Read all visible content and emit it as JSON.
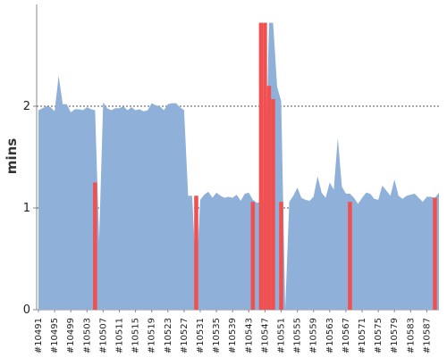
{
  "chart_data": {
    "type": "area",
    "ylabel": "mins",
    "ylim": [
      0,
      3
    ],
    "yticks": [
      "0",
      "1",
      "2"
    ],
    "ytick_values": [
      0,
      1,
      2
    ],
    "grid": "dotted horizontal",
    "x_start": 10491,
    "x_end": 10590,
    "xtick_labels": [
      "#10491",
      "#10495",
      "#10499",
      "#10503",
      "#10507",
      "#10511",
      "#10515",
      "#10519",
      "#10523",
      "#10527",
      "#10531",
      "#10535",
      "#10539",
      "#10543",
      "#10547",
      "#10551",
      "#10555",
      "#10559",
      "#10563",
      "#10567",
      "#10571",
      "#10575",
      "#10579",
      "#10583",
      "#10587"
    ],
    "series": [
      {
        "color": "#8eb0d9",
        "x": [
          10491,
          10492,
          10493,
          10494,
          10495,
          10496,
          10497,
          10498,
          10499,
          10500,
          10501,
          10502,
          10503,
          10504,
          10505,
          10506,
          10507,
          10508,
          10509,
          10510,
          10511,
          10512,
          10513,
          10514,
          10515,
          10516,
          10517,
          10518,
          10519,
          10520,
          10521,
          10522,
          10523,
          10524,
          10525,
          10526,
          10527,
          10528,
          10529,
          10530,
          10531,
          10532,
          10533,
          10534,
          10535,
          10536,
          10537,
          10538,
          10539,
          10540,
          10541,
          10542,
          10543,
          10544,
          10545,
          10546,
          10547,
          10548,
          10549,
          10550,
          10551,
          10552,
          10553,
          10554,
          10555,
          10556,
          10557,
          10558,
          10559,
          10560,
          10561,
          10562,
          10563,
          10564,
          10565,
          10566,
          10567,
          10568,
          10569,
          10570,
          10571,
          10572,
          10573,
          10574,
          10575,
          10576,
          10577,
          10578,
          10579,
          10580,
          10581,
          10582,
          10583,
          10584,
          10585,
          10586,
          10587,
          10588,
          10589,
          10590
        ],
        "values": [
          1.96,
          1.98,
          2.0,
          1.99,
          1.95,
          2.3,
          2.02,
          2.02,
          1.94,
          1.97,
          1.97,
          1.96,
          1.99,
          1.97,
          1.96,
          0.68,
          2.04,
          1.98,
          1.96,
          1.98,
          1.98,
          2.0,
          1.96,
          1.99,
          1.96,
          1.97,
          1.95,
          1.96,
          2.03,
          2.01,
          2.0,
          1.96,
          2.02,
          2.03,
          2.03,
          1.99,
          1.96,
          1.12,
          1.12,
          0.3,
          1.08,
          1.13,
          1.16,
          1.1,
          1.15,
          1.12,
          1.1,
          1.11,
          1.1,
          1.13,
          1.07,
          1.14,
          1.15,
          1.08,
          1.05,
          1.06,
          1.12,
          2.82,
          2.82,
          2.19,
          2.05,
          0.0,
          1.06,
          1.12,
          1.2,
          1.1,
          1.08,
          1.07,
          1.11,
          1.31,
          1.15,
          1.1,
          1.25,
          1.18,
          1.69,
          1.21,
          1.14,
          1.14,
          1.1,
          1.04,
          1.1,
          1.15,
          1.14,
          1.09,
          1.08,
          1.22,
          1.17,
          1.12,
          1.28,
          1.12,
          1.09,
          1.12,
          1.13,
          1.14,
          1.1,
          1.06,
          1.11,
          1.11,
          1.1,
          1.15
        ]
      },
      {
        "color": "#f05050",
        "bars": [
          {
            "x": 10505,
            "value": 1.25
          },
          {
            "x": 10530,
            "value": 1.12
          },
          {
            "x": 10544,
            "value": 1.06
          },
          {
            "x": 10546,
            "value": 2.82
          },
          {
            "x": 10547,
            "value": 2.82
          },
          {
            "x": 10548,
            "value": 2.2
          },
          {
            "x": 10549,
            "value": 2.07
          },
          {
            "x": 10550,
            "value": 0.0
          },
          {
            "x": 10551,
            "value": 1.06
          },
          {
            "x": 10568,
            "value": 1.06
          },
          {
            "x": 10589,
            "value": 1.1
          }
        ]
      }
    ]
  }
}
